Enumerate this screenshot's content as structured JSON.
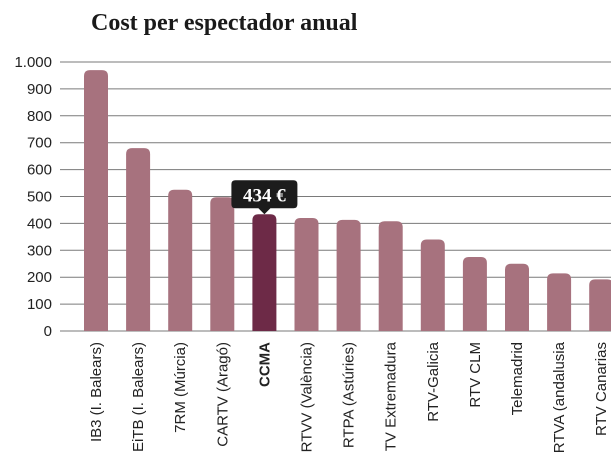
{
  "chart_data": {
    "type": "bar",
    "title": "Cost per espectador anual",
    "categories": [
      "IB3 (I. Balears)",
      "EiTB (I. Balears)",
      "7RM (Múrcia)",
      "CARTV (Aragó)",
      "CCMA",
      "RTVV (València)",
      "RTPA (Astúries)",
      "TV Extremadura",
      "RTV-Galicia",
      "RTV CLM",
      "Telemadrid",
      "RTVA (andalusia",
      "RTV Canarias"
    ],
    "values": [
      970,
      680,
      525,
      497,
      434,
      420,
      413,
      408,
      340,
      275,
      250,
      214,
      192
    ],
    "ylim": [
      0,
      1000
    ],
    "yticks": [
      0,
      100,
      200,
      300,
      400,
      500,
      600,
      700,
      800,
      900,
      1000
    ],
    "ytick_labels": [
      "0",
      "100",
      "200",
      "300",
      "400",
      "500",
      "600",
      "700",
      "800",
      "900",
      "1.000"
    ],
    "highlight_index": 4,
    "annotation": "434 €",
    "grid": true,
    "colors": {
      "bar": "#a7727e",
      "highlight": "#6d2a47",
      "callout": "#1c1c1c"
    }
  }
}
